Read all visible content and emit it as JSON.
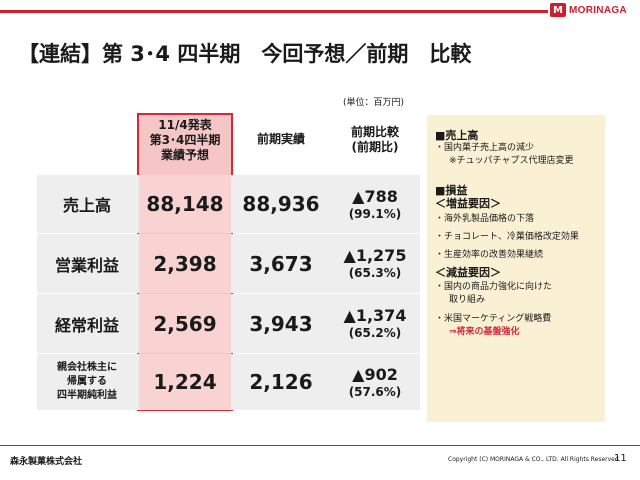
{
  "header": {
    "brand": "MORINAGA",
    "title": "【連結】第 3･4 四半期　今回予想／前期　比較"
  },
  "unit_note": "(単位：百万円)",
  "table": {
    "col_headers": [
      "11/4発表\n第3･4四半期\n業績予想",
      "前期実績",
      "前期比較\n(前期比)"
    ],
    "rows": [
      {
        "label": "売上高",
        "forecast": "88,148",
        "prior": "88,936",
        "diff": "▲788",
        "ratio": "(99.1%)"
      },
      {
        "label": "営業利益",
        "forecast": "2,398",
        "prior": "3,673",
        "diff": "▲1,275",
        "ratio": "(65.3%)"
      },
      {
        "label": "経常利益",
        "forecast": "2,569",
        "prior": "3,943",
        "diff": "▲1,374",
        "ratio": "(65.2%)"
      },
      {
        "label": "親会社株主に\n帰属する\n四半期純利益",
        "forecast": "1,224",
        "prior": "2,126",
        "diff": "▲902",
        "ratio": "(57.6%)"
      }
    ]
  },
  "side": {
    "sales_title": "■売上高",
    "sales_1": "・国内菓子売上高の減少",
    "sales_2": "※チュッパチャプス代理店変更",
    "profit_title": "■損益",
    "plus_title": "＜増益要因＞",
    "plus_1": "・海外乳製品価格の下落",
    "plus_2": "・チョコレート、冷菓価格改定効果",
    "plus_3": "・生産効率の改善効果継続",
    "minus_title": "＜減益要因＞",
    "minus_1a": "・国内の商品力強化に向けた",
    "minus_1b": "取り組み",
    "minus_2": "・米国マーケティング戦略費",
    "minus_3": "⇒将来の基盤強化"
  },
  "footer": {
    "company": "森永製菓株式会社",
    "copyright": "Copyright (C) MORINAGA & CO., LTD. All Rights Reserved.",
    "page": "11"
  },
  "colors": {
    "accent": "#cc1f2d",
    "highlight": "#f6c6c6",
    "side_bg": "#faf1d4"
  }
}
